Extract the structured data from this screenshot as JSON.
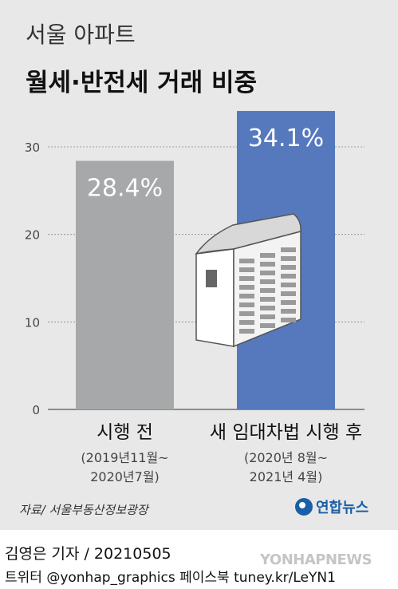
{
  "title": {
    "sub": "서울 아파트",
    "main": "월세·반전세 거래 비중"
  },
  "chart_data": {
    "type": "bar",
    "categories": [
      "시행 전",
      "새 임대차법 시행 후"
    ],
    "category_subtitles": [
      "(2019년11월~\n2020년7월)",
      "(2020년 8월~\n2021년 4월)"
    ],
    "values": [
      28.4,
      34.1
    ],
    "value_labels": [
      "28.4%",
      "34.1%"
    ],
    "colors": [
      "#a7a8aa",
      "#5679bd"
    ],
    "yticks": [
      0,
      10,
      20,
      30
    ],
    "ylim": [
      0,
      34.1
    ],
    "grid": true
  },
  "source": "자료/ 서울부동산정보광장",
  "logo_text": "연합뉴스",
  "credit": "김영은 기자 / 20210505",
  "social": "트위터 @yonhap_graphics  페이스북 tuney.kr/LeYN1",
  "watermark": "YONHAPNEWS"
}
